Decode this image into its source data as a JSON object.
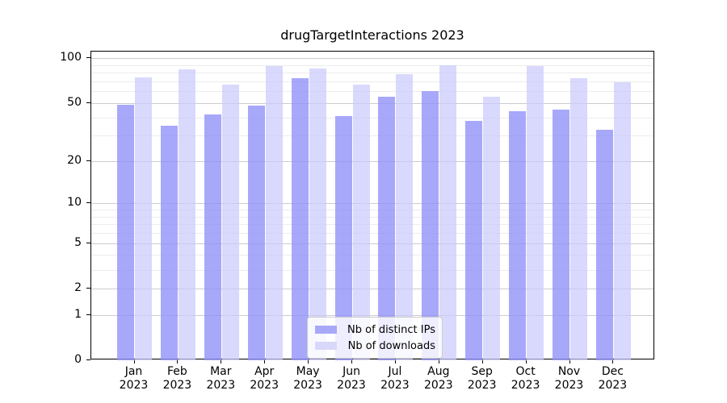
{
  "title": "drugTargetInteractions 2023",
  "colors": {
    "distinct_ips": "#a8a8f8",
    "downloads": "#d8d8fa",
    "distinct_ips_fill": "rgba(146,146,250,0.80)",
    "downloads_fill": "rgba(203,203,252,0.72)",
    "grid_major": "#cccccc",
    "grid_minor": "#ececec",
    "axis": "#000000"
  },
  "chart_data": {
    "type": "bar",
    "title": "drugTargetInteractions 2023",
    "categories": [
      "Jan",
      "Feb",
      "Mar",
      "Apr",
      "May",
      "Jun",
      "Jul",
      "Aug",
      "Sep",
      "Oct",
      "Nov",
      "Dec"
    ],
    "year_label": "2023",
    "series": [
      {
        "name": "Nb of distinct IPs",
        "values": [
          49,
          35,
          42,
          48,
          74,
          41,
          55,
          60,
          38,
          44,
          45,
          33
        ]
      },
      {
        "name": "Nb of downloads",
        "values": [
          75,
          84,
          67,
          89,
          86,
          67,
          78,
          90,
          55,
          89,
          74,
          69
        ]
      }
    ],
    "yscale": "log1p",
    "yticks": [
      0,
      1,
      2,
      5,
      10,
      20,
      50,
      100
    ],
    "yticks_minor": [
      3,
      4,
      6,
      7,
      8,
      9,
      30,
      40,
      60,
      70,
      80,
      90
    ],
    "ylim": [
      0,
      110
    ],
    "grid": true,
    "legend_position": "lower center"
  },
  "legend": {
    "items": [
      {
        "label": "Nb of distinct IPs"
      },
      {
        "label": "Nb of downloads"
      }
    ]
  }
}
